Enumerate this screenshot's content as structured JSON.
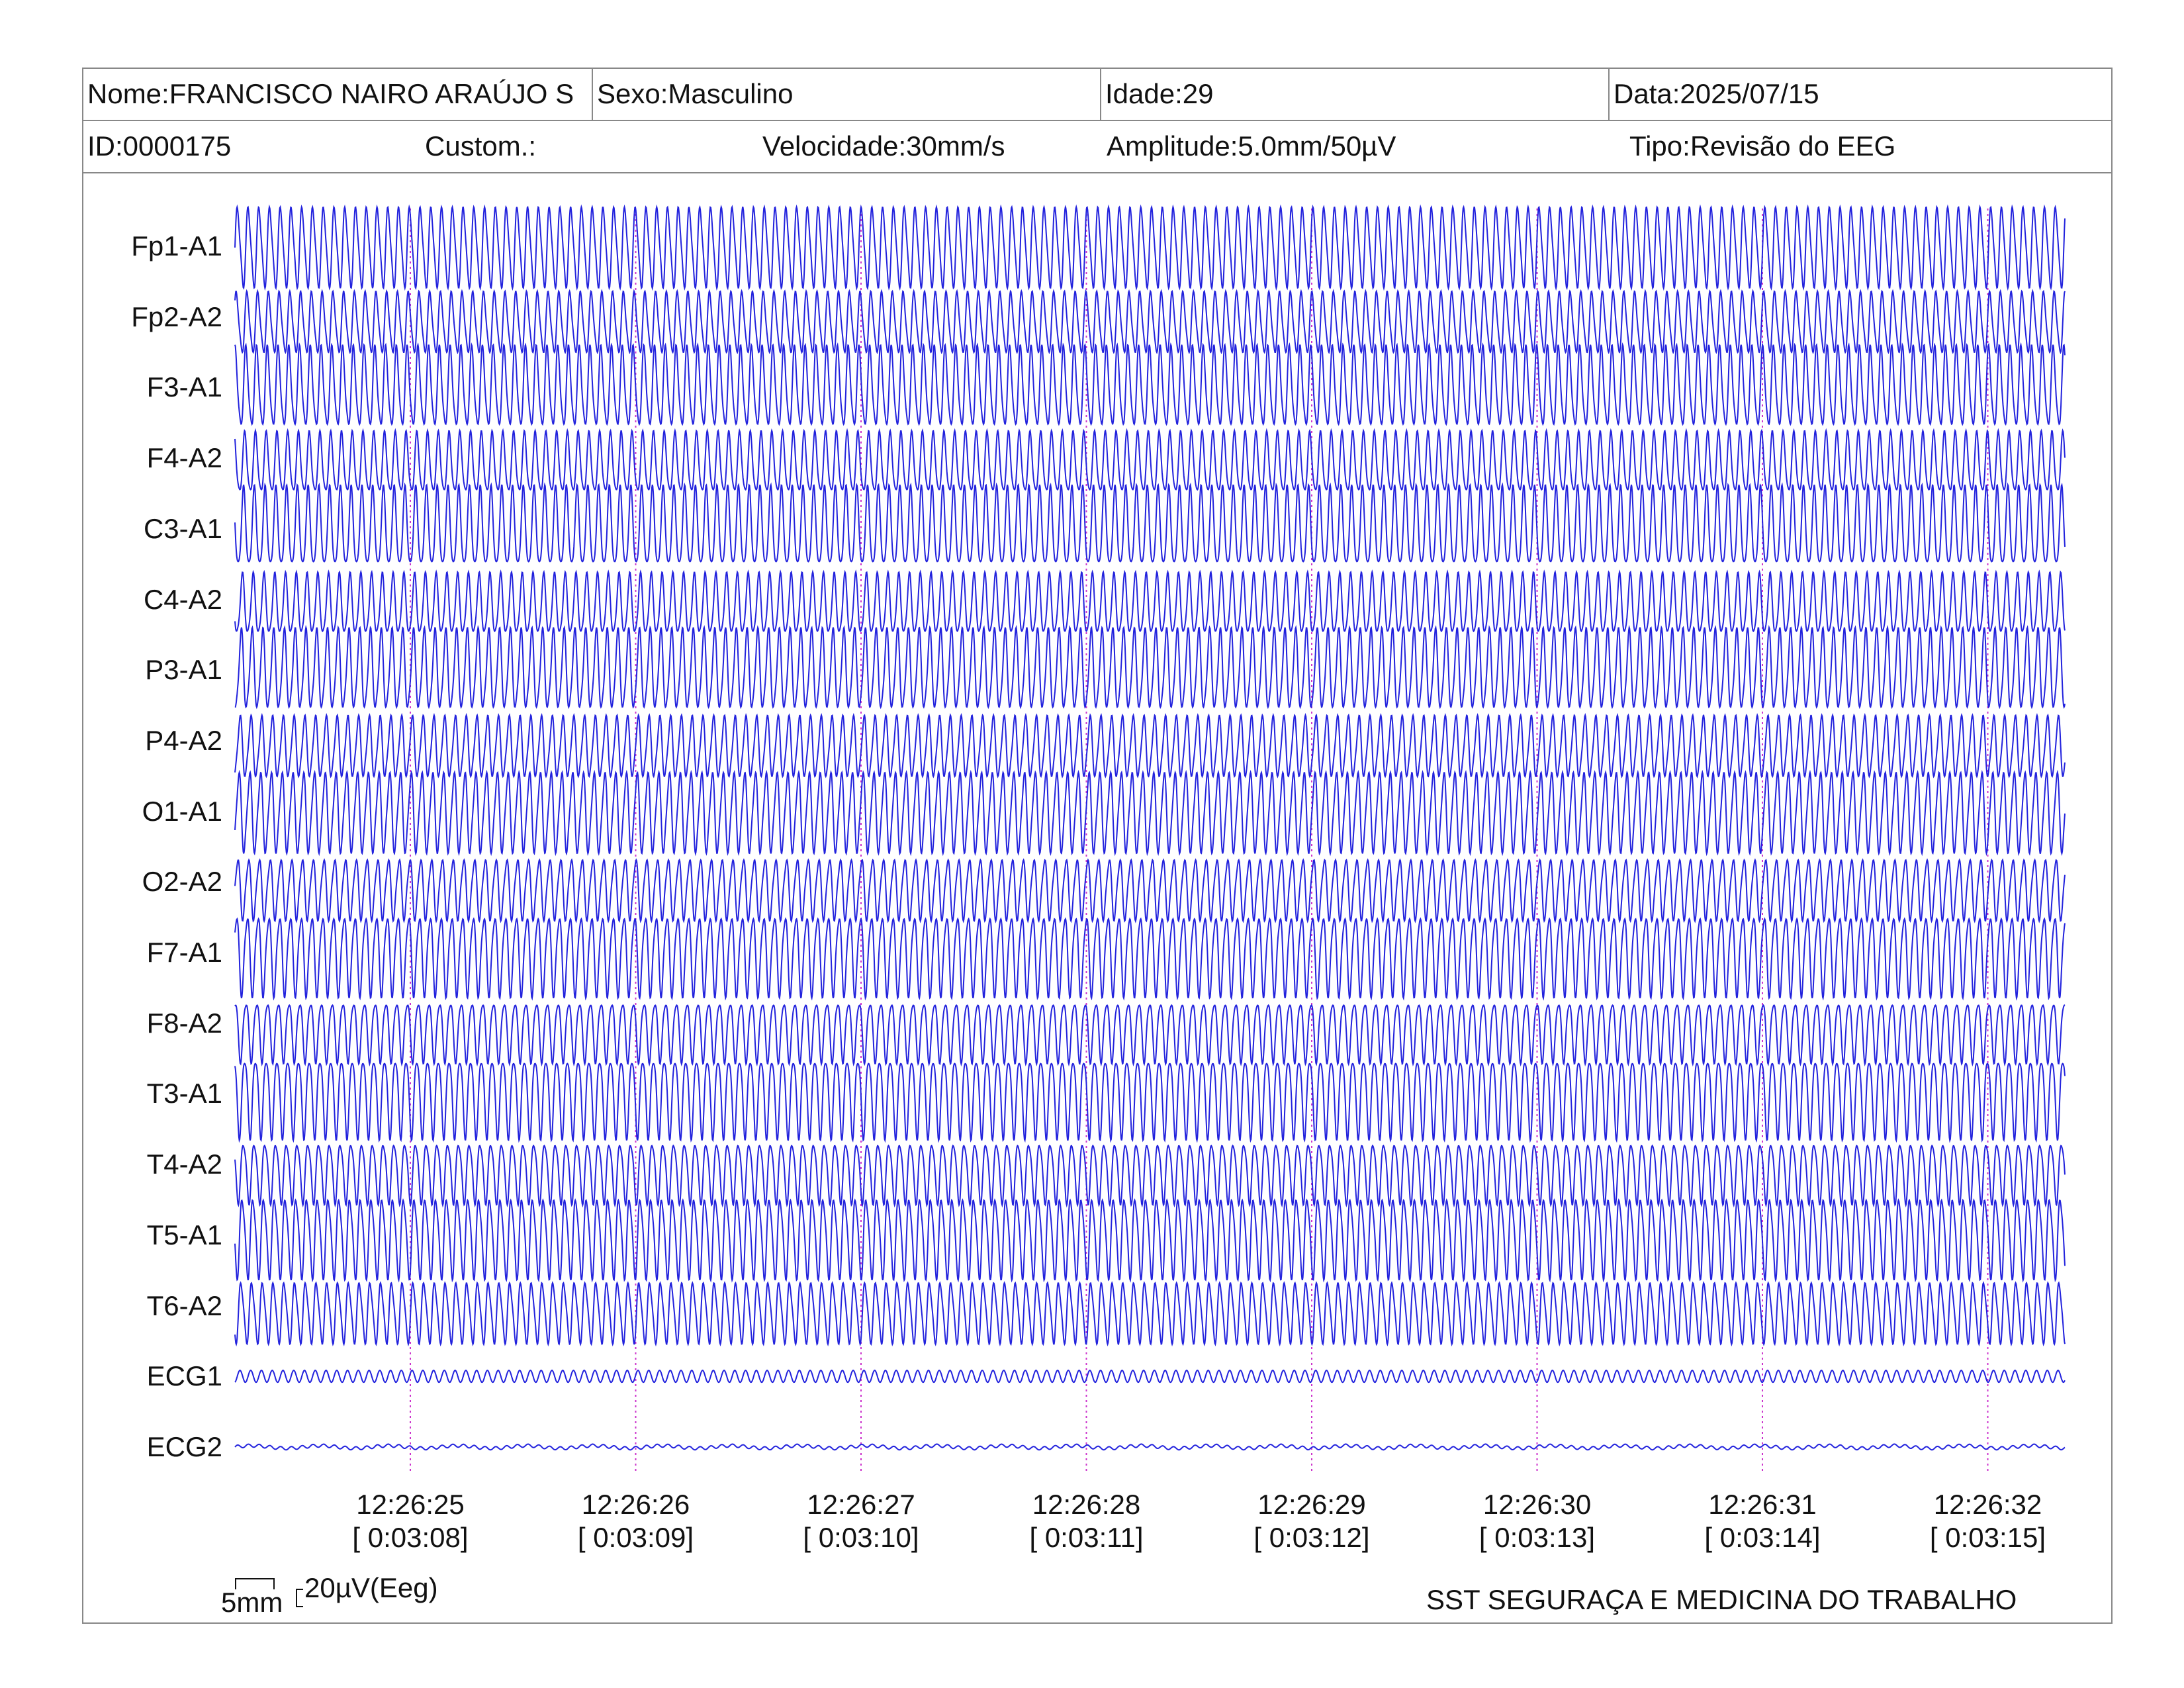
{
  "header": {
    "name": "Nome:FRANCISCO NAIRO ARAÚJO S",
    "sex": "Sexo:Masculino",
    "age": "Idade:29",
    "date": "Data:2025/07/15",
    "id": "ID:0000175",
    "custom": "Custom.:",
    "speed": "Velocidade:30mm/s",
    "amplitude": "Amplitude:5.0mm/50µV",
    "type": "Tipo:Revisão do EEG"
  },
  "scale": {
    "time_label": "5mm",
    "amp_label": "20µV(Eeg)"
  },
  "footer": "SST SEGURAÇA E MEDICINA DO TRABALHO",
  "colors": {
    "trace": "#2222dd",
    "marker": "#cc33cc",
    "border": "#888888"
  },
  "chart_data": {
    "type": "line",
    "title": "",
    "channels": [
      "Fp1-A1",
      "Fp2-A2",
      "F3-A1",
      "F4-A2",
      "C3-A1",
      "C4-A2",
      "P3-A1",
      "P4-A2",
      "O1-A1",
      "O2-A2",
      "F7-A1",
      "F8-A2",
      "T3-A1",
      "T4-A2",
      "T5-A1",
      "T6-A2",
      "ECG1",
      "ECG2"
    ],
    "time_ticks": [
      {
        "clock": "12:26:25",
        "elapsed": "[ 0:03:08]"
      },
      {
        "clock": "12:26:26",
        "elapsed": "[ 0:03:09]"
      },
      {
        "clock": "12:26:27",
        "elapsed": "[ 0:03:10]"
      },
      {
        "clock": "12:26:28",
        "elapsed": "[ 0:03:11]"
      },
      {
        "clock": "12:26:29",
        "elapsed": "[ 0:03:12]"
      },
      {
        "clock": "12:26:30",
        "elapsed": "[ 0:03:13]"
      },
      {
        "clock": "12:26:31",
        "elapsed": "[ 0:03:14]"
      },
      {
        "clock": "12:26:32",
        "elapsed": "[ 0:03:15]"
      }
    ],
    "x_range_seconds": [
      0,
      8.1
    ],
    "eeg_frequency_hz": 21,
    "ecg_frequency_hz": 21,
    "grid": false
  }
}
